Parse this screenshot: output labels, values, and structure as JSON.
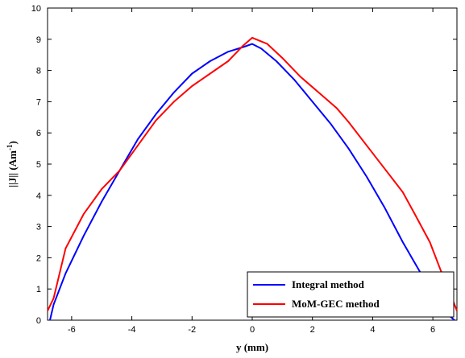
{
  "chart_data": {
    "type": "line",
    "title": "",
    "xlabel": "y (mm)",
    "ylabel_main": "||J|| (Am",
    "ylabel_sup": "-1",
    "ylabel_close": ")",
    "xlim": [
      -6.8,
      6.8
    ],
    "ylim": [
      0,
      10
    ],
    "xticks": [
      -6,
      -4,
      -2,
      0,
      2,
      4,
      6
    ],
    "yticks": [
      0,
      1,
      2,
      3,
      4,
      5,
      6,
      7,
      8,
      9,
      10
    ],
    "grid": false,
    "legend_position": "bottom-right",
    "series": [
      {
        "name": "Integral method",
        "color": "#0000ff",
        "x": [
          -6.72,
          -6.6,
          -6.2,
          -5.6,
          -5.0,
          -4.4,
          -3.8,
          -3.2,
          -2.6,
          -2.0,
          -1.4,
          -0.8,
          -0.3,
          0.0,
          0.3,
          0.8,
          1.4,
          2.0,
          2.6,
          3.2,
          3.8,
          4.4,
          5.0,
          5.6,
          6.2,
          6.6,
          6.72
        ],
        "y": [
          0.0,
          0.5,
          1.5,
          2.7,
          3.8,
          4.8,
          5.8,
          6.6,
          7.3,
          7.9,
          8.3,
          8.6,
          8.75,
          8.85,
          8.7,
          8.3,
          7.7,
          7.0,
          6.3,
          5.5,
          4.6,
          3.6,
          2.5,
          1.5,
          0.6,
          0.1,
          0.0
        ]
      },
      {
        "name": "MoM-GEC method",
        "color": "#ff0000",
        "x": [
          -6.8,
          -6.6,
          -6.2,
          -5.6,
          -5.0,
          -4.4,
          -3.8,
          -3.2,
          -2.6,
          -2.0,
          -1.4,
          -0.8,
          -0.3,
          0.0,
          0.5,
          1.0,
          1.6,
          2.2,
          2.8,
          3.2,
          3.8,
          4.4,
          5.0,
          5.4,
          5.9,
          6.3,
          6.6,
          6.8
        ],
        "y": [
          0.3,
          0.7,
          2.3,
          3.4,
          4.2,
          4.8,
          5.6,
          6.4,
          7.0,
          7.5,
          7.9,
          8.3,
          8.8,
          9.05,
          8.85,
          8.4,
          7.8,
          7.3,
          6.8,
          6.35,
          5.6,
          4.85,
          4.1,
          3.4,
          2.5,
          1.5,
          0.8,
          0.3
        ]
      }
    ]
  }
}
